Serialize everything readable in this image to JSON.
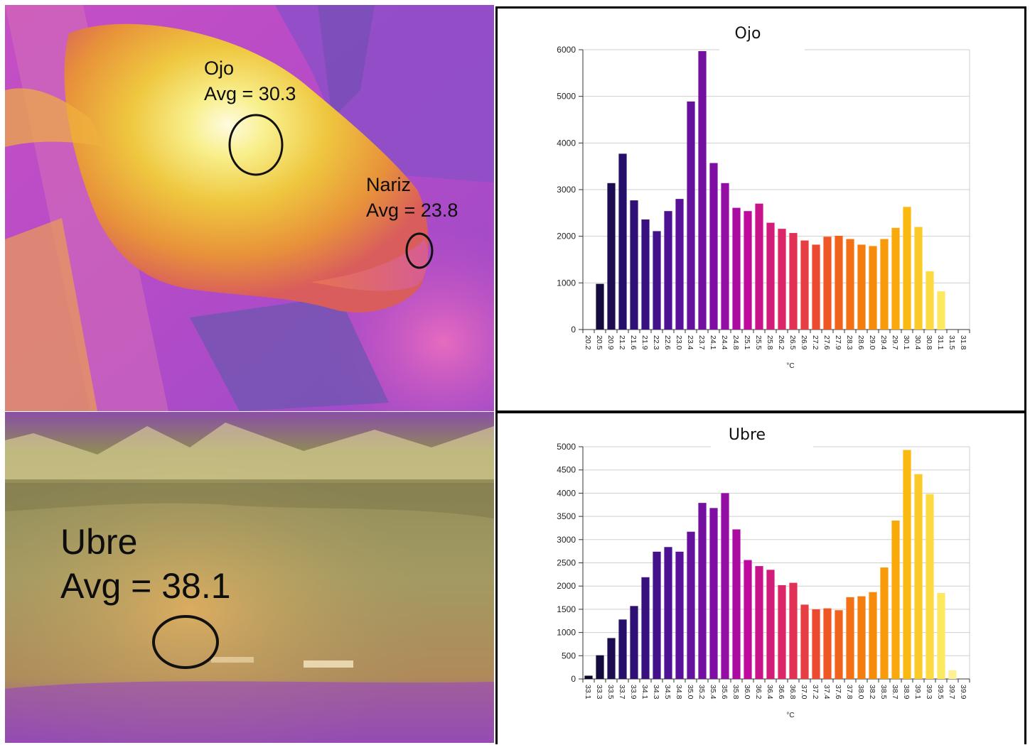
{
  "thermal": {
    "eye": {
      "label": "Ojo",
      "avg": "Avg = 30.3"
    },
    "nose": {
      "label": "Nariz",
      "avg": "Avg = 23.8"
    },
    "udder": {
      "label": "Ubre",
      "avg": "Avg = 38.1"
    }
  },
  "chart_data": [
    {
      "type": "bar",
      "title": "Ojo",
      "xlabel": "°C",
      "ylabel": "",
      "ylim": [
        0,
        6000
      ],
      "yticks": [
        0,
        1000,
        2000,
        3000,
        4000,
        5000,
        6000
      ],
      "grid": true,
      "categories": [
        "20.2",
        "20.5",
        "20.9",
        "21.2",
        "21.6",
        "21.9",
        "22.3",
        "22.6",
        "23.0",
        "23.4",
        "23.7",
        "24.1",
        "24.4",
        "24.8",
        "25.1",
        "25.5",
        "25.8",
        "26.2",
        "26.5",
        "26.9",
        "27.2",
        "27.6",
        "27.9",
        "28.3",
        "28.6",
        "29.0",
        "29.4",
        "29.7",
        "30.1",
        "30.4",
        "30.8",
        "31.1",
        "31.5",
        "31.8"
      ],
      "values": [
        0,
        980,
        3140,
        3770,
        2770,
        2360,
        2110,
        2540,
        2800,
        4890,
        5970,
        3570,
        3140,
        2610,
        2540,
        2700,
        2290,
        2160,
        2070,
        1910,
        1820,
        1990,
        2010,
        1940,
        1820,
        1790,
        1940,
        2180,
        2630,
        2200,
        1250,
        820,
        0,
        0
      ]
    },
    {
      "type": "bar",
      "title": "Ubre",
      "xlabel": "°C",
      "ylabel": "",
      "ylim": [
        0,
        5000
      ],
      "yticks": [
        0,
        500,
        1000,
        1500,
        2000,
        2500,
        3000,
        3500,
        4000,
        4500,
        5000
      ],
      "grid": true,
      "categories": [
        "33.1",
        "33.3",
        "33.5",
        "33.7",
        "33.9",
        "34.1",
        "34.3",
        "34.5",
        "34.8",
        "35.0",
        "35.2",
        "35.4",
        "35.6",
        "35.8",
        "36.0",
        "36.2",
        "36.4",
        "36.6",
        "36.8",
        "37.0",
        "37.2",
        "37.4",
        "37.6",
        "37.8",
        "38.0",
        "38.2",
        "38.5",
        "38.7",
        "38.9",
        "39.1",
        "39.3",
        "39.5",
        "39.7",
        "39.9"
      ],
      "values": [
        70,
        510,
        880,
        1280,
        1570,
        2190,
        2740,
        2840,
        2740,
        3170,
        3790,
        3680,
        4000,
        3220,
        2560,
        2430,
        2350,
        2020,
        2070,
        1600,
        1500,
        1520,
        1480,
        1760,
        1780,
        1870,
        2400,
        3410,
        4930,
        4410,
        3980,
        1850,
        190,
        0
      ]
    }
  ]
}
